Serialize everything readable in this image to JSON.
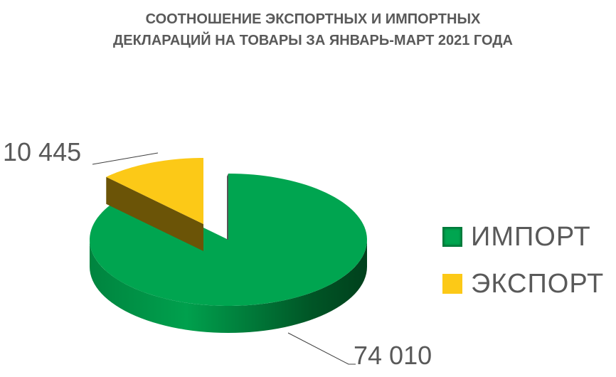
{
  "chart_data": {
    "type": "pie",
    "style": "3d exploded pie",
    "title_lines": [
      "СООТНОШЕНИЕ ЭКСПОРТНЫХ И ИМПОРТНЫХ",
      "ДЕКЛАРАЦИЙ НА ТОВАРЫ ЗА ЯНВАРЬ-МАРТ 2021 ГОДА"
    ],
    "slices": [
      {
        "name": "ИМПОРТ",
        "value": 74010,
        "label": "74 010",
        "color": "#00A550"
      },
      {
        "name": "ЭКСПОРТ",
        "value": 10445,
        "label": "10 445",
        "color": "#FCC917"
      }
    ],
    "legend_position": "right"
  }
}
